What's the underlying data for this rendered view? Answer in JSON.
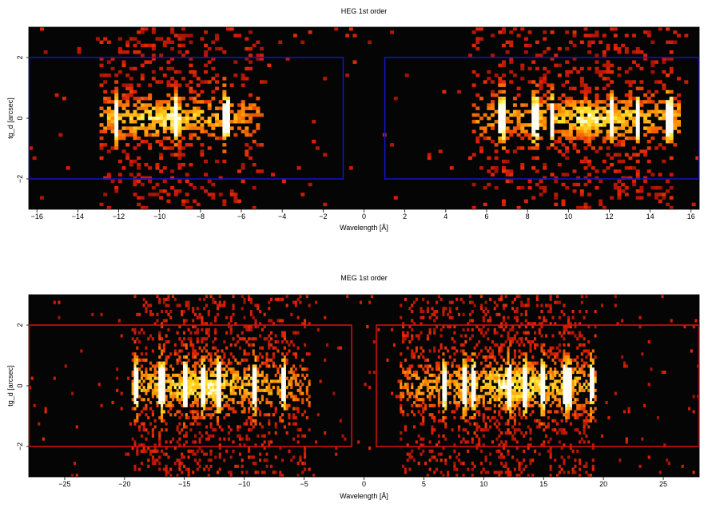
{
  "chart_data": [
    {
      "type": "heatmap",
      "title": "HEG 1st order",
      "xlabel": "Wavelength [Å]",
      "ylabel": "tg_d [arcsec]",
      "xlim": [
        -16.4,
        16.4
      ],
      "ylim": [
        -3.0,
        3.0
      ],
      "xticks": [
        -16,
        -14,
        -12,
        -10,
        -8,
        -6,
        -4,
        -2,
        0,
        2,
        4,
        6,
        8,
        10,
        12,
        14,
        16
      ],
      "xtick_labels": [
        "−16",
        "−14",
        "−12",
        "−10",
        "−8",
        "−6",
        "−4",
        "−2",
        "0",
        "2",
        "4",
        "6",
        "8",
        "10",
        "12",
        "14",
        "16"
      ],
      "yticks": [
        -2,
        0,
        2
      ],
      "ytick_labels": [
        "−2",
        "0",
        "2"
      ],
      "grid": false,
      "colormap": "black-red-yellow-white",
      "background_color": "#050505",
      "extraction_regions": {
        "color": "#1414cc",
        "regions": [
          {
            "x": [
              -16.4,
              -1.0
            ],
            "y": [
              -2.0,
              2.0
            ]
          },
          {
            "x": [
              1.0,
              16.4
            ],
            "y": [
              -2.0,
              2.0
            ]
          }
        ]
      },
      "emission_lines": [
        -12.1,
        -9.2,
        -6.7,
        6.7,
        8.4,
        9.2,
        12.1,
        13.4,
        15.0
      ],
      "source_extent": {
        "negative": [
          -12.9,
          -5.0
        ],
        "positive": [
          5.2,
          15.5
        ]
      }
    },
    {
      "type": "heatmap",
      "title": "MEG 1st order",
      "xlabel": "Wavelength [Å]",
      "ylabel": "tg_d [arcsec]",
      "xlim": [
        -28.0,
        28.0
      ],
      "ylim": [
        -3.0,
        3.0
      ],
      "xticks": [
        -25,
        -20,
        -15,
        -10,
        -5,
        0,
        5,
        10,
        15,
        20,
        25
      ],
      "xtick_labels": [
        "−25",
        "−20",
        "−15",
        "−10",
        "−5",
        "0",
        "5",
        "10",
        "15",
        "20",
        "25"
      ],
      "yticks": [
        -2,
        0,
        2
      ],
      "ytick_labels": [
        "−2",
        "0",
        "2"
      ],
      "grid": false,
      "colormap": "black-red-yellow-white",
      "background_color": "#050505",
      "extraction_regions": {
        "color": "#dd1111",
        "regions": [
          {
            "x": [
              -28.0,
              -1.0
            ],
            "y": [
              -2.0,
              2.0
            ]
          },
          {
            "x": [
              1.0,
              28.0
            ],
            "y": [
              -2.0,
              2.0
            ]
          }
        ]
      },
      "emission_lines": [
        -19.0,
        -17.0,
        -16.8,
        -15.0,
        -13.5,
        -12.1,
        -9.2,
        -6.7,
        6.7,
        8.4,
        9.2,
        12.1,
        13.4,
        15.0,
        16.8,
        17.1,
        19.0
      ],
      "source_extent": {
        "negative": [
          -19.5,
          -4.5
        ],
        "positive": [
          3.0,
          19.5
        ]
      }
    }
  ]
}
